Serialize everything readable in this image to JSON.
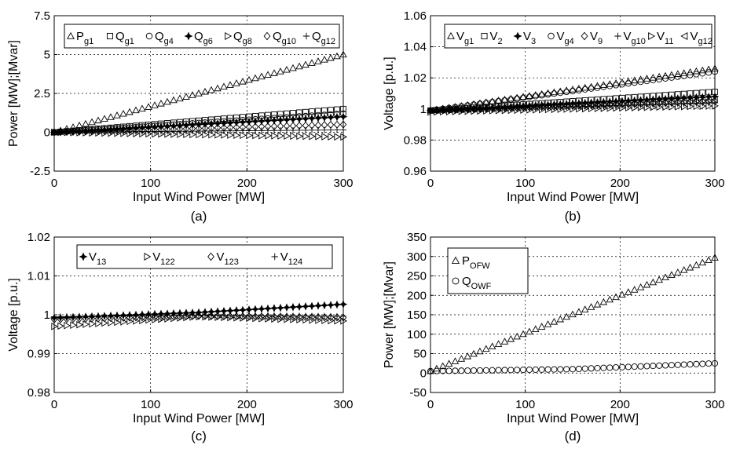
{
  "chart_data": [
    {
      "id": "a",
      "type": "scatter",
      "caption": "(a)",
      "xlabel": "Input Wind Power [MW]",
      "ylabel": "Power [MW];[Mvar]",
      "xlim": [
        0,
        300
      ],
      "ylim": [
        -2.5,
        7.5
      ],
      "xticks": [
        "0",
        "100",
        "200",
        "300"
      ],
      "yticks": [
        "-2.5",
        "0",
        "2.5",
        "5",
        "7.5"
      ],
      "grid": true,
      "legend_position": "top",
      "legend_layout": "row",
      "series": [
        {
          "name": "P",
          "sub": "g1",
          "marker": "triangle-up",
          "x": [
            0,
            300
          ],
          "y": [
            0,
            5.0
          ]
        },
        {
          "name": "Q",
          "sub": "g1",
          "marker": "square",
          "x": [
            0,
            300
          ],
          "y": [
            0,
            1.5
          ]
        },
        {
          "name": "Q",
          "sub": "g4",
          "marker": "circle",
          "x": [
            0,
            300
          ],
          "y": [
            0,
            1.2
          ]
        },
        {
          "name": "Q",
          "sub": "g6",
          "marker": "star",
          "x": [
            0,
            300
          ],
          "y": [
            0,
            1.0
          ]
        },
        {
          "name": "Q",
          "sub": "g8",
          "marker": "triangle-right",
          "x": [
            0,
            300
          ],
          "y": [
            0,
            -0.3
          ]
        },
        {
          "name": "Q",
          "sub": "g10",
          "marker": "diamond",
          "x": [
            0,
            300
          ],
          "y": [
            0,
            0.5
          ]
        },
        {
          "name": "Q",
          "sub": "g12",
          "marker": "plus",
          "x": [
            0,
            300
          ],
          "y": [
            0,
            0.15
          ]
        }
      ]
    },
    {
      "id": "b",
      "type": "scatter",
      "caption": "(b)",
      "xlabel": "Input Wind Power [MW]",
      "ylabel": "Voltage [p.u.]",
      "xlim": [
        0,
        300
      ],
      "ylim": [
        0.96,
        1.06
      ],
      "xticks": [
        "0",
        "100",
        "200",
        "300"
      ],
      "yticks": [
        "0.96",
        "0.98",
        "1",
        "1.02",
        "1.04",
        "1.06"
      ],
      "grid": true,
      "legend_position": "top",
      "legend_layout": "row",
      "series": [
        {
          "name": "V",
          "sub": "g1",
          "marker": "triangle-up",
          "x": [
            0,
            300
          ],
          "y": [
            0.999,
            1.026
          ]
        },
        {
          "name": "V",
          "sub": "2",
          "marker": "square",
          "x": [
            0,
            300
          ],
          "y": [
            0.999,
            1.011
          ]
        },
        {
          "name": "V",
          "sub": "3",
          "marker": "star",
          "x": [
            0,
            300
          ],
          "y": [
            0.999,
            1.008
          ]
        },
        {
          "name": "V",
          "sub": "g4",
          "marker": "circle",
          "x": [
            0,
            300
          ],
          "y": [
            0.999,
            1.024
          ]
        },
        {
          "name": "V",
          "sub": "9",
          "marker": "diamond",
          "x": [
            0,
            300
          ],
          "y": [
            0.999,
            1.005
          ]
        },
        {
          "name": "V",
          "sub": "g10",
          "marker": "plus",
          "x": [
            0,
            300
          ],
          "y": [
            0.999,
            1.004
          ]
        },
        {
          "name": "V",
          "sub": "11",
          "marker": "triangle-right",
          "x": [
            0,
            300
          ],
          "y": [
            0.998,
            1.002
          ]
        },
        {
          "name": "V",
          "sub": "g12",
          "marker": "triangle-left",
          "x": [
            0,
            300
          ],
          "y": [
            0.999,
            1.006
          ]
        }
      ]
    },
    {
      "id": "c",
      "type": "scatter",
      "caption": "(c)",
      "xlabel": "Input Wind Power [MW]",
      "ylabel": "Voltage [p.u.]",
      "xlim": [
        0,
        300
      ],
      "ylim": [
        0.98,
        1.02
      ],
      "xticks": [
        "0",
        "100",
        "200",
        "300"
      ],
      "yticks": [
        "0.98",
        "0.99",
        "1",
        "1.01",
        "1.02"
      ],
      "grid": true,
      "legend_position": "top",
      "legend_layout": "row",
      "series": [
        {
          "name": "V",
          "sub": "13",
          "marker": "star",
          "x": [
            0,
            150,
            300
          ],
          "y": [
            0.9992,
            1.0006,
            1.0027
          ]
        },
        {
          "name": "V",
          "sub": "122",
          "marker": "triangle-right",
          "x": [
            0,
            150,
            300
          ],
          "y": [
            0.997,
            0.9995,
            0.9984
          ]
        },
        {
          "name": "V",
          "sub": "123",
          "marker": "diamond",
          "x": [
            0,
            150,
            300
          ],
          "y": [
            0.9988,
            0.9997,
            0.9993
          ]
        },
        {
          "name": "V",
          "sub": "124",
          "marker": "plus",
          "x": [
            0,
            150,
            300
          ],
          "y": [
            0.9995,
            0.9999,
            0.9996
          ]
        }
      ]
    },
    {
      "id": "d",
      "type": "scatter",
      "caption": "(d)",
      "xlabel": "Input Wind Power [MW]",
      "ylabel": "Power [MW];[Mvar]",
      "xlim": [
        0,
        300
      ],
      "ylim": [
        -50,
        350
      ],
      "xticks": [
        "0",
        "100",
        "200",
        "300"
      ],
      "yticks": [
        "-50",
        "0",
        "50",
        "100",
        "150",
        "200",
        "250",
        "300",
        "350"
      ],
      "grid": true,
      "legend_position": "top-left",
      "legend_layout": "column",
      "series": [
        {
          "name": "P",
          "sub": "OFW",
          "marker": "triangle-up",
          "x": [
            0,
            300
          ],
          "y": [
            5,
            297
          ]
        },
        {
          "name": "Q",
          "sub": "OWF",
          "marker": "circle",
          "x": [
            0,
            150,
            300
          ],
          "y": [
            5,
            10,
            25
          ]
        }
      ]
    }
  ]
}
